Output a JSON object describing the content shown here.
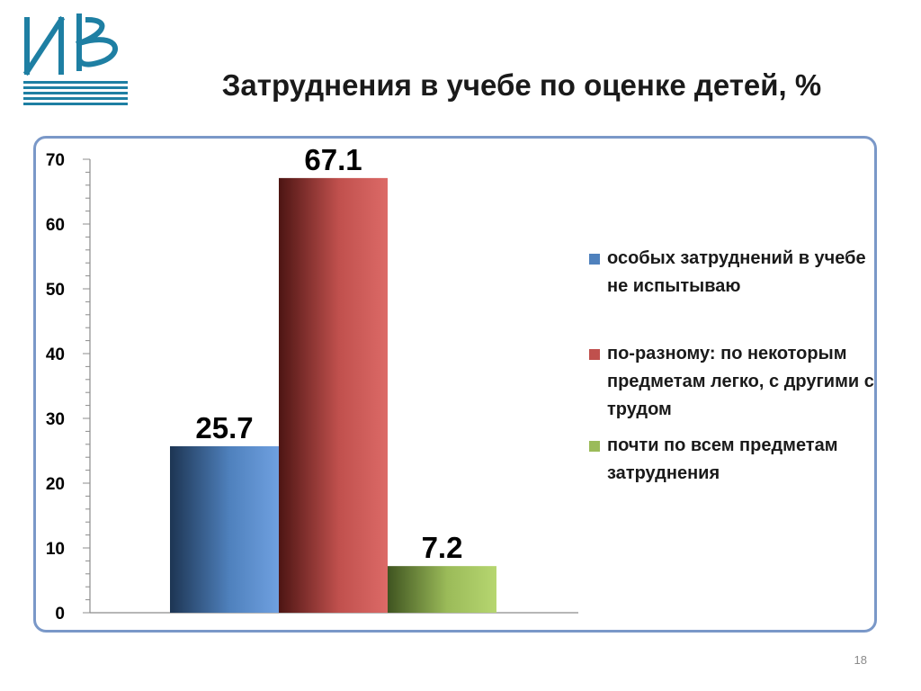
{
  "slide": {
    "title": "Затруднения в учебе по оценке детей, %",
    "page_number": "18"
  },
  "chart_data": {
    "type": "bar",
    "categories": [
      ""
    ],
    "series": [
      {
        "name": "особых затруднений в учебе не испытываю",
        "values": [
          25.7
        ],
        "color": "#4f81bd"
      },
      {
        "name": "по-разному: по некоторым предметам легко, с другими с трудом",
        "values": [
          67.1
        ],
        "color": "#c0504d"
      },
      {
        "name": "почти по всем предметам затруднения",
        "values": [
          7.2
        ],
        "color": "#9bbb59"
      }
    ],
    "data_labels": [
      "25.7",
      "67.1",
      "7.2"
    ],
    "ylim": [
      0,
      70
    ],
    "y_ticks": [
      0,
      10,
      20,
      30,
      40,
      50,
      60,
      70
    ],
    "y_tick_labels": [
      "0",
      "10",
      "20",
      "30",
      "40",
      "50",
      "60",
      "70"
    ],
    "grid": false,
    "legend_position": "right",
    "title": "",
    "xlabel": "",
    "ylabel": ""
  }
}
